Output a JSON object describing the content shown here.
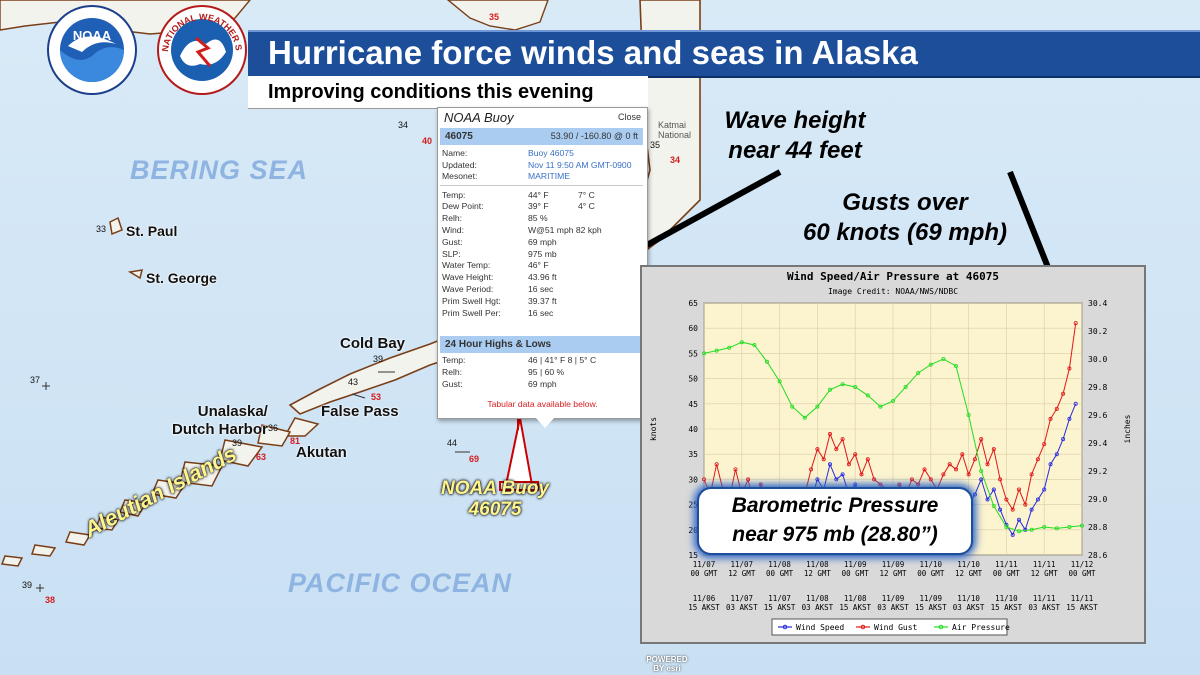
{
  "banner": {
    "title": "Hurricane force winds and seas in Alaska",
    "subtitle": "Improving conditions this evening"
  },
  "logos": {
    "noaa_text": "NOAA",
    "nws_text": "NATIONAL WEATHER SERVICE",
    "noaa_ring_text": "NATIONAL OCEANIC AND ATMOSPHERIC ADMINISTRATION",
    "noaa_bottom_text": "U.S. DEPARTMENT OF COMMERCE"
  },
  "map": {
    "water_labels": [
      "BERING SEA",
      "PACIFIC OCEAN"
    ],
    "islands_label": "Aleutian Islands",
    "places": [
      "St. Paul",
      "St. George",
      "Cold Bay",
      "False Pass",
      "Unalaska/\nDutch Harbor",
      "Akutan",
      "Katmai National"
    ],
    "stations": [
      "33",
      "37",
      "39",
      "43",
      "39",
      "36",
      "44",
      "34",
      "39",
      "35"
    ],
    "station_gusts": [
      "40",
      "34",
      "53",
      "63",
      "81",
      "69",
      "38",
      "35"
    ],
    "buoy_label": "NOAA Buoy\n46075",
    "attribution": "POWERED BY esri"
  },
  "popup": {
    "title": "NOAA Buoy",
    "close": "Close",
    "station_id": "46075",
    "coords": "53.90 / -160.80 @ 0 ft",
    "meta": [
      {
        "k": "Name:",
        "v": "Buoy 46075",
        "blue": true
      },
      {
        "k": "Updated:",
        "v": "Nov 11 9:50 AM GMT-0900",
        "blue": true
      },
      {
        "k": "Mesonet:",
        "v": "MARITIME",
        "blue": true
      }
    ],
    "obs": [
      {
        "k": "Temp:",
        "v": "44° F",
        "v2": "7° C"
      },
      {
        "k": "Dew Point:",
        "v": "39° F",
        "v2": "4° C"
      },
      {
        "k": "Relh:",
        "v": "85 %",
        "v2": ""
      },
      {
        "k": "Wind:",
        "v": "W@51 mph 82 kph",
        "v2": ""
      },
      {
        "k": "Gust:",
        "v": "69 mph",
        "v2": ""
      },
      {
        "k": "SLP:",
        "v": "975 mb",
        "v2": ""
      },
      {
        "k": "Water Temp:",
        "v": "46° F",
        "v2": ""
      },
      {
        "k": "Wave Height:",
        "v": "43.96 ft",
        "v2": ""
      },
      {
        "k": "Wave Period:",
        "v": "16 sec",
        "v2": ""
      },
      {
        "k": "Prim Swell Hgt:",
        "v": "39.37 ft",
        "v2": ""
      },
      {
        "k": "Prim Swell Per:",
        "v": "16 sec",
        "v2": ""
      }
    ],
    "highs_header": "24 Hour Highs & Lows",
    "highs": [
      {
        "k": "Temp:",
        "v": "46 | 41° F   8 | 5° C"
      },
      {
        "k": "Relh:",
        "v": "95 | 60 %"
      },
      {
        "k": "Gust:",
        "v": "69 mph"
      }
    ],
    "footer_note": "Tabular data available below."
  },
  "annotations": {
    "wave": "Wave height\nnear 44 feet",
    "gusts": "Gusts over\n60 knots (69 mph)",
    "baro_line1": "Barometric Pressure",
    "baro_line2": "near 975 mb (28.80”)"
  },
  "colors": {
    "banner": "#1d4e9a",
    "water": "#dfeef8",
    "land": "#f3f3ee",
    "coast": "#7a3e17",
    "wind_speed": "#2a2ae0",
    "wind_gust": "#e01818",
    "air_pressure": "#22dd22",
    "plot_bg": "#fcf3cf"
  },
  "chart_data": {
    "type": "line",
    "title": "Wind Speed/Air Pressure at 46075",
    "subtitle": "Image Credit: NOAA/NWS/NDBC",
    "ylabel": "knots",
    "y2label": "inches",
    "ylim": [
      15,
      65
    ],
    "y2lim": [
      28.6,
      30.4
    ],
    "xlim": [
      0,
      120
    ],
    "yticks": [
      15,
      20,
      25,
      30,
      35,
      40,
      45,
      50,
      55,
      60,
      65
    ],
    "y2ticks": [
      28.6,
      28.8,
      29.0,
      29.2,
      29.4,
      29.6,
      29.8,
      30.0,
      30.2,
      30.4
    ],
    "xticks_gmt": [
      "11/07\n00 GMT",
      "11/07\n12 GMT",
      "11/08\n00 GMT",
      "11/08\n12 GMT",
      "11/09\n00 GMT",
      "11/09\n12 GMT",
      "11/10\n00 GMT",
      "11/10\n12 GMT",
      "11/11\n00 GMT",
      "11/11\n12 GMT",
      "11/12\n00 GMT"
    ],
    "xticks_akst": [
      "11/06\n15 AKST",
      "11/07\n03 AKST",
      "11/07\n15 AKST",
      "11/08\n03 AKST",
      "11/08\n15 AKST",
      "11/09\n03 AKST",
      "11/09\n15 AKST",
      "11/10\n03 AKST",
      "11/10\n15 AKST",
      "11/11\n03 AKST",
      "11/11\n15 AKST"
    ],
    "legend": "bottom-center",
    "series": [
      {
        "name": "Wind Speed",
        "axis": "left",
        "color": "#2a2ae0",
        "x": [
          0,
          2,
          4,
          6,
          8,
          10,
          12,
          14,
          16,
          18,
          20,
          22,
          24,
          26,
          28,
          30,
          32,
          34,
          36,
          38,
          40,
          42,
          44,
          46,
          48,
          50,
          52,
          54,
          56,
          58,
          60,
          62,
          64,
          66,
          68,
          70,
          72,
          74,
          76,
          78,
          80,
          82,
          84,
          86,
          88,
          90,
          92,
          94,
          96,
          98,
          100,
          102,
          104,
          106,
          108,
          110,
          112,
          114,
          116,
          118
        ],
        "y": [
          24,
          22,
          27,
          23,
          21,
          26,
          22,
          24,
          20,
          23,
          21,
          22,
          19,
          21,
          23,
          20,
          22,
          26,
          30,
          28,
          33,
          30,
          31,
          27,
          29,
          26,
          28,
          25,
          24,
          23,
          21,
          24,
          22,
          25,
          23,
          26,
          24,
          23,
          25,
          27,
          26,
          28,
          25,
          27,
          30,
          26,
          28,
          24,
          21,
          19,
          22,
          20,
          24,
          26,
          28,
          33,
          35,
          38,
          42,
          45
        ]
      },
      {
        "name": "Wind Gust",
        "axis": "left",
        "color": "#e01818",
        "x": [
          0,
          2,
          4,
          6,
          8,
          10,
          12,
          14,
          16,
          18,
          20,
          22,
          24,
          26,
          28,
          30,
          32,
          34,
          36,
          38,
          40,
          42,
          44,
          46,
          48,
          50,
          52,
          54,
          56,
          58,
          60,
          62,
          64,
          66,
          68,
          70,
          72,
          74,
          76,
          78,
          80,
          82,
          84,
          86,
          88,
          90,
          92,
          94,
          96,
          98,
          100,
          102,
          104,
          106,
          108,
          110,
          112,
          114,
          116,
          118
        ],
        "y": [
          30,
          27,
          33,
          28,
          26,
          32,
          27,
          30,
          24,
          29,
          26,
          28,
          24,
          26,
          28,
          25,
          27,
          32,
          36,
          34,
          39,
          36,
          38,
          33,
          35,
          31,
          34,
          30,
          29,
          28,
          26,
          29,
          27,
          30,
          29,
          32,
          30,
          28,
          31,
          33,
          32,
          35,
          31,
          34,
          38,
          33,
          36,
          30,
          26,
          24,
          28,
          25,
          31,
          34,
          37,
          42,
          44,
          47,
          52,
          61
        ]
      },
      {
        "name": "Air Pressure",
        "axis": "right",
        "color": "#22dd22",
        "x": [
          0,
          4,
          8,
          12,
          16,
          20,
          24,
          28,
          32,
          36,
          40,
          44,
          48,
          52,
          56,
          60,
          64,
          68,
          72,
          76,
          80,
          84,
          88,
          92,
          96,
          100,
          104,
          108,
          112,
          116,
          120
        ],
        "y": [
          30.04,
          30.06,
          30.08,
          30.12,
          30.1,
          29.98,
          29.84,
          29.66,
          29.58,
          29.66,
          29.78,
          29.82,
          29.8,
          29.74,
          29.66,
          29.7,
          29.8,
          29.9,
          29.96,
          30.0,
          29.95,
          29.6,
          29.2,
          28.95,
          28.8,
          28.77,
          28.78,
          28.8,
          28.79,
          28.8,
          28.81
        ]
      }
    ]
  }
}
